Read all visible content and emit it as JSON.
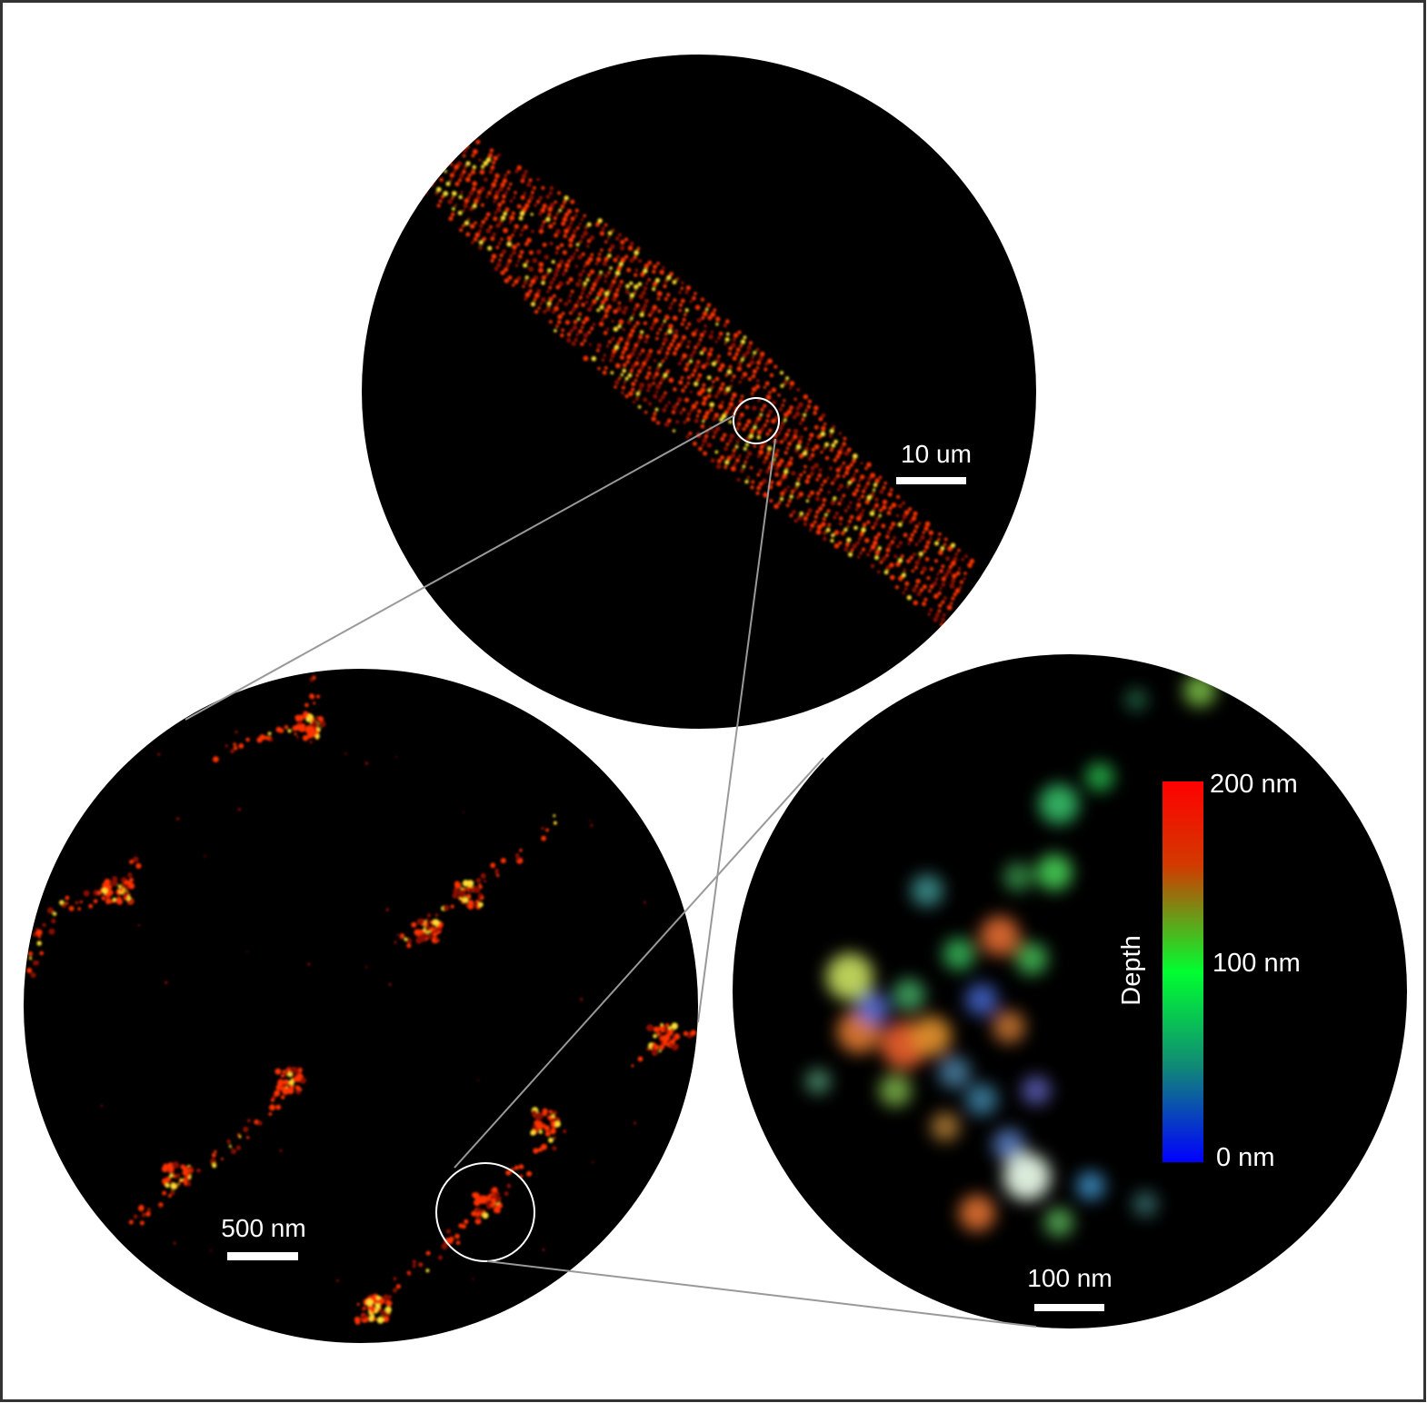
{
  "panels": {
    "top": {
      "scale_label": "10 um"
    },
    "bottom_left": {
      "scale_label": "500 nm"
    },
    "bottom_right": {
      "scale_label": "100 nm",
      "colorbar": {
        "title": "Depth",
        "max_label": "200 nm",
        "mid_label": "100 nm",
        "min_label": "0 nm",
        "colors": [
          "#ff0000",
          "#00ff33",
          "#0000ff"
        ]
      }
    }
  },
  "colors": {
    "frame_border": "#333333",
    "panel_background": "#000000",
    "connector_line": "#999999",
    "hot_low": "#8a0d00",
    "hot_mid": "#ff3300",
    "hot_high": "#ffdd33"
  }
}
